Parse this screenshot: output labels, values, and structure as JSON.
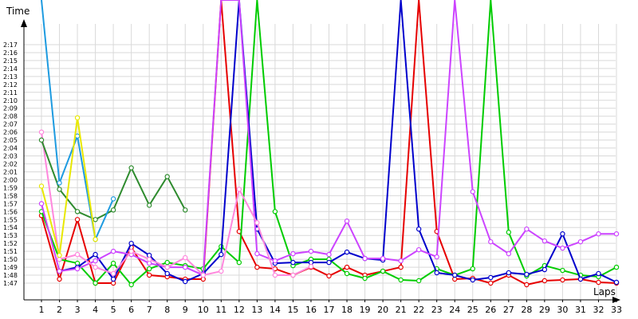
{
  "chart_data": {
    "type": "line",
    "ylabel": "Time",
    "xlabel": "Laps",
    "x": [
      1,
      2,
      3,
      4,
      5,
      6,
      7,
      8,
      9,
      10,
      11,
      12,
      13,
      14,
      15,
      16,
      17,
      18,
      19,
      20,
      21,
      22,
      23,
      24,
      25,
      26,
      27,
      28,
      29,
      30,
      31,
      32,
      33
    ],
    "xticks": [
      "1",
      "2",
      "3",
      "4",
      "5",
      "6",
      "7",
      "8",
      "9",
      "10",
      "11",
      "12",
      "13",
      "14",
      "15",
      "16",
      "17",
      "18",
      "19",
      "20",
      "21",
      "22",
      "23",
      "24",
      "25",
      "26",
      "27",
      "28",
      "29",
      "30",
      "31",
      "32",
      "33"
    ],
    "yticks": [
      "1:47",
      "1:48",
      "1:49",
      "1:50",
      "1:51",
      "1:52",
      "1:53",
      "1:54",
      "1:55",
      "1:56",
      "1:57",
      "1:58",
      "1:59",
      "2:00",
      "2:01",
      "2:02",
      "2:03",
      "2:04",
      "2:05",
      "2:06",
      "2:07",
      "2:08",
      "2:09",
      "2:10",
      "2:11",
      "2:12",
      "2:13",
      "2:14",
      "2:15",
      "2:16",
      "2:17"
    ],
    "ylim_seconds": [
      105,
      160
    ],
    "ylim": [
      "1:45",
      "2:40"
    ],
    "grid": true,
    "series": [
      {
        "color": "#e60000",
        "values": [
          115.5,
          107.5,
          115.0,
          107.0,
          107.0,
          111.5,
          108.0,
          107.8,
          107.5,
          107.5,
          160,
          113.5,
          109.0,
          108.8,
          108.0,
          109.0,
          107.9,
          109.0,
          108.0,
          108.5,
          109.0,
          160,
          113.5,
          107.5,
          107.6,
          107.0,
          108.0,
          106.8,
          107.3,
          107.4,
          107.5,
          107.1,
          107.0
        ]
      },
      {
        "color": "#00cc00",
        "values": [
          116.0,
          110.0,
          109.5,
          107.0,
          109.5,
          106.8,
          108.8,
          109.6,
          109.2,
          108.8,
          111.6,
          109.6,
          160,
          116.0,
          109.2,
          110.0,
          110.0,
          108.2,
          107.6,
          108.5,
          107.4,
          107.3,
          108.8,
          108.0,
          108.8,
          160,
          113.4,
          107.9,
          109.2,
          108.6,
          108.0,
          107.8,
          109.0
        ]
      },
      {
        "color": "#0000cc",
        "values": [
          null,
          108.5,
          109.0,
          110.6,
          107.5,
          112.0,
          110.5,
          108.2,
          107.2,
          108.2,
          110.6,
          160,
          113.8,
          109.5,
          109.6,
          109.6,
          109.6,
          110.9,
          110.1,
          109.9,
          160,
          113.8,
          108.3,
          108.0,
          107.4,
          107.7,
          108.3,
          108.1,
          108.7,
          113.2,
          107.5,
          108.2,
          107.1
        ]
      },
      {
        "color": "#cc44ff",
        "values": [
          117.0,
          108.5,
          108.8,
          109.8,
          111.0,
          110.6,
          109.5,
          109.0,
          109.0,
          108.0,
          160,
          160,
          110.7,
          109.8,
          110.7,
          111.0,
          110.6,
          114.8,
          110.1,
          110.1,
          109.8,
          111.2,
          110.3,
          160,
          118.5,
          112.2,
          110.7,
          113.8,
          112.3,
          111.4,
          112.2,
          113.2,
          113.2
        ]
      },
      {
        "color": "#ff88dd",
        "values": [
          126.0,
          110.0,
          110.6,
          109.0,
          108.2,
          111.0,
          110.0,
          109.0,
          110.2,
          108.0,
          108.5,
          118.8,
          114.6,
          108.0,
          108.0,
          109.1,
          null,
          null,
          null,
          null,
          null,
          null,
          null,
          null,
          null,
          null,
          null,
          null,
          null,
          null,
          null,
          null,
          null
        ]
      },
      {
        "color": "#2e8b2e",
        "values": [
          125.0,
          118.8,
          116.0,
          115.0,
          116.2,
          121.5,
          116.8,
          120.4,
          116.2,
          null,
          null,
          null,
          null,
          null,
          null,
          null,
          null,
          null,
          null,
          null,
          null,
          null,
          null,
          null,
          null,
          null,
          null,
          null,
          null,
          null,
          null,
          null,
          null
        ]
      },
      {
        "color": "#1e9be0",
        "values": [
          160,
          119.6,
          125.5,
          112.5,
          117.6,
          null,
          null,
          null,
          null,
          null,
          null,
          null,
          null,
          null,
          null,
          null,
          null,
          null,
          null,
          null,
          null,
          null,
          null,
          null,
          null,
          null,
          null,
          null,
          null,
          null,
          null,
          null,
          null
        ]
      },
      {
        "color": "#e8e800",
        "values": [
          119.2,
          110.5,
          127.8,
          112.5,
          null,
          null,
          null,
          null,
          null,
          null,
          null,
          null,
          null,
          null,
          null,
          null,
          null,
          null,
          null,
          null,
          null,
          null,
          null,
          null,
          null,
          null,
          null,
          null,
          null,
          null,
          null,
          null,
          null
        ]
      }
    ]
  }
}
